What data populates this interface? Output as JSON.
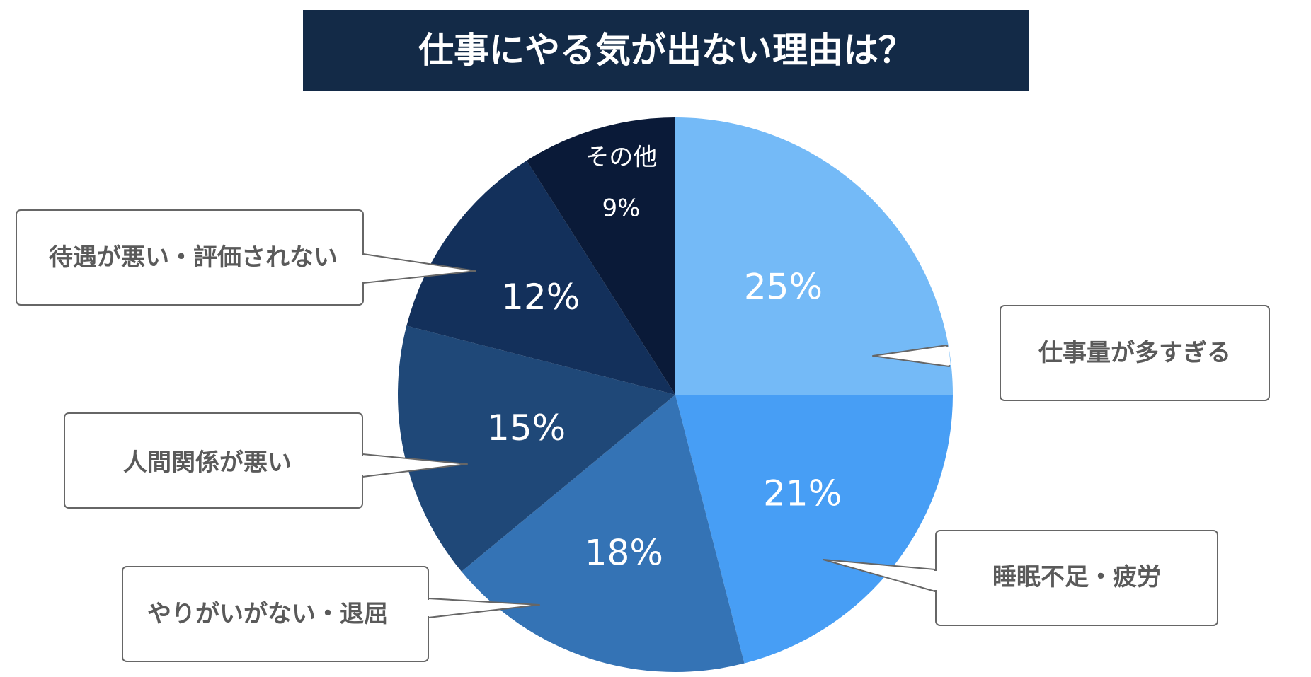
{
  "chart_data": {
    "type": "pie",
    "title": "仕事にやる気が出ない理由は？",
    "slices": [
      {
        "label": "仕事量が多すぎる",
        "value": 25,
        "value_label": "25%",
        "color": "#74BAF7"
      },
      {
        "label": "睡眠不足・疲労",
        "value": 21,
        "value_label": "21%",
        "color": "#479EF5"
      },
      {
        "label": "やりがいがない・退屈",
        "value": 18,
        "value_label": "18%",
        "color": "#3473B5"
      },
      {
        "label": "人間関係が悪い",
        "value": 15,
        "value_label": "15%",
        "color": "#1F4878"
      },
      {
        "label": "待遇が悪い・評価されない",
        "value": 12,
        "value_label": "12%",
        "color": "#13305B"
      },
      {
        "label": "その他",
        "value": 9,
        "value_label": "9%",
        "color": "#0A1A38"
      }
    ],
    "colors": {
      "title_background": "#132A47",
      "title_text": "#FFFFFF",
      "value_text": "#FFFFFF",
      "callout_border": "#666666",
      "callout_text": "#5A5A5A"
    }
  }
}
